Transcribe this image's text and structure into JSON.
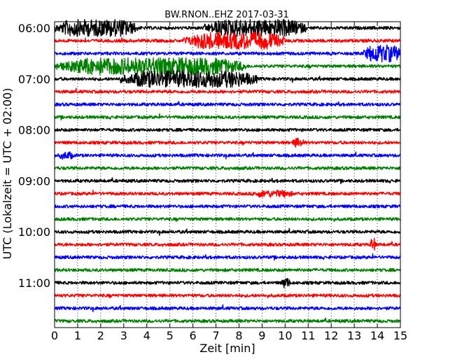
{
  "chart_data": {
    "type": "line",
    "title": "BW.RNON..EHZ 2017-03-31",
    "xlabel": "Zeit  [min]",
    "ylabel": "UTC (Lokalzeit = UTC + 02:00)",
    "xlim": [
      0,
      15
    ],
    "xticks": [
      0,
      1,
      2,
      3,
      4,
      5,
      6,
      7,
      8,
      9,
      10,
      11,
      12,
      13,
      14,
      15
    ],
    "yticks": [
      "06:00",
      "07:00",
      "08:00",
      "09:00",
      "10:00",
      "11:00"
    ],
    "grid": {
      "x": "dotted",
      "y": false
    },
    "trace_minutes": 15,
    "row_colors": [
      "#000000",
      "#ff0000",
      "#0000ff",
      "#008000"
    ],
    "rows": [
      {
        "start": "06:00",
        "bursts": [
          {
            "t0": 0.0,
            "t1": 3.6,
            "amp": 1.0
          },
          {
            "t0": 6.5,
            "t1": 10.9,
            "amp": 1.0
          }
        ]
      },
      {
        "start": "06:15",
        "bursts": [
          {
            "t0": 5.6,
            "t1": 10.0,
            "amp": 1.0
          }
        ]
      },
      {
        "start": "06:30",
        "bursts": [
          {
            "t0": 13.4,
            "t1": 15.0,
            "amp": 1.0
          }
        ]
      },
      {
        "start": "06:45",
        "bursts": [
          {
            "t0": 0.0,
            "t1": 8.3,
            "amp": 1.0
          }
        ]
      },
      {
        "start": "07:00",
        "bursts": [
          {
            "t0": 2.8,
            "t1": 8.8,
            "amp": 1.0
          }
        ]
      },
      {
        "start": "07:15",
        "bursts": []
      },
      {
        "start": "07:30",
        "bursts": []
      },
      {
        "start": "07:45",
        "bursts": []
      },
      {
        "start": "08:00",
        "bursts": []
      },
      {
        "start": "08:15",
        "bursts": [
          {
            "t0": 10.3,
            "t1": 10.8,
            "amp": 0.45
          }
        ]
      },
      {
        "start": "08:30",
        "bursts": [
          {
            "t0": 0.2,
            "t1": 0.8,
            "amp": 0.35
          }
        ]
      },
      {
        "start": "08:45",
        "bursts": []
      },
      {
        "start": "09:00",
        "bursts": []
      },
      {
        "start": "09:15",
        "bursts": [
          {
            "t0": 8.6,
            "t1": 10.3,
            "amp": 0.3
          }
        ]
      },
      {
        "start": "09:30",
        "bursts": []
      },
      {
        "start": "09:45",
        "bursts": []
      },
      {
        "start": "10:00",
        "bursts": []
      },
      {
        "start": "10:15",
        "bursts": [
          {
            "t0": 13.7,
            "t1": 13.95,
            "amp": 0.7
          }
        ]
      },
      {
        "start": "10:30",
        "bursts": []
      },
      {
        "start": "10:45",
        "bursts": []
      },
      {
        "start": "11:00",
        "bursts": [
          {
            "t0": 9.85,
            "t1": 10.2,
            "amp": 0.55
          }
        ]
      },
      {
        "start": "11:15",
        "bursts": []
      },
      {
        "start": "11:30",
        "bursts": []
      },
      {
        "start": "11:45",
        "bursts": []
      }
    ]
  }
}
